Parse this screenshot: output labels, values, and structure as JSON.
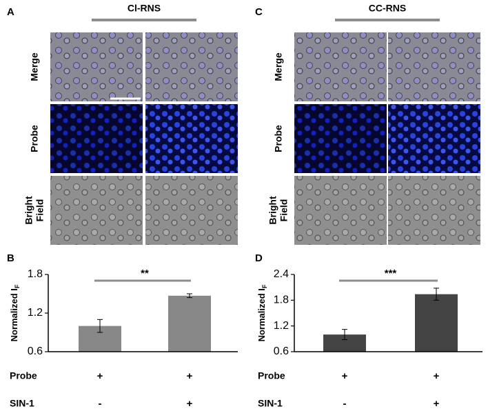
{
  "panels": [
    {
      "letter": "A",
      "condition": "Cl-RNS",
      "rows": [
        [
          "Merge"
        ],
        [
          "Probe"
        ],
        [
          "Bright",
          "Field"
        ]
      ]
    },
    {
      "letter": "C",
      "condition": "CC-RNS",
      "rows": [
        [
          "Merge"
        ],
        [
          "Probe"
        ],
        [
          "Bright",
          "Field"
        ]
      ]
    }
  ],
  "chart_data": [
    {
      "type": "bar",
      "letter": "B",
      "y_label": "Normalized I",
      "y_label_subscript": "F",
      "values": [
        1.0,
        1.47
      ],
      "errors": [
        0.1,
        0.03
      ],
      "color": "#888888",
      "ylim": [
        0.6,
        1.8
      ],
      "yticks": [
        0.6,
        1.2,
        1.8
      ],
      "significance": "**",
      "conditions": [
        {
          "name": "Probe",
          "marks": [
            "+",
            "+"
          ]
        },
        {
          "name": "SIN-1",
          "marks": [
            "-",
            "+"
          ]
        }
      ]
    },
    {
      "type": "bar",
      "letter": "D",
      "y_label": "Normalized I",
      "y_label_subscript": "F",
      "values": [
        1.0,
        1.94
      ],
      "errors": [
        0.12,
        0.14
      ],
      "color": "#444444",
      "ylim": [
        0.6,
        2.4
      ],
      "yticks": [
        0.6,
        1.2,
        1.8,
        2.4
      ],
      "significance": "***",
      "conditions": [
        {
          "name": "Probe",
          "marks": [
            "+",
            "+"
          ]
        },
        {
          "name": "SIN-1",
          "marks": [
            "-",
            "+"
          ]
        }
      ]
    }
  ]
}
